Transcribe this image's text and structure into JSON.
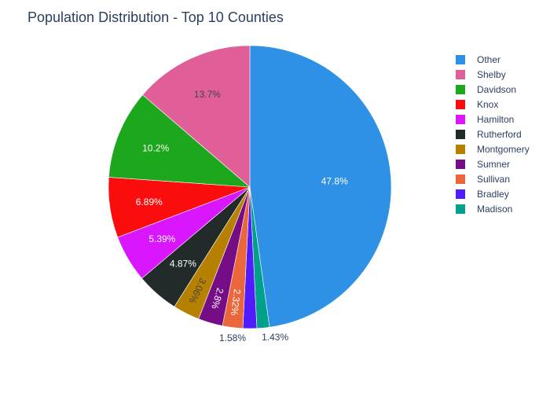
{
  "chart_data": {
    "type": "pie",
    "title": "Population Distribution - Top 10 Counties",
    "labels": [
      "Other",
      "Shelby",
      "Davidson",
      "Knox",
      "Hamilton",
      "Rutherford",
      "Montgomery",
      "Sumner",
      "Sullivan",
      "Bradley",
      "Madison"
    ],
    "pie_order": [
      "Other",
      "Madison",
      "Bradley",
      "Sullivan",
      "Sumner",
      "Montgomery",
      "Rutherford",
      "Hamilton",
      "Knox",
      "Davidson",
      "Shelby"
    ],
    "values": [
      47.8,
      13.7,
      10.2,
      6.89,
      5.39,
      4.87,
      3.06,
      2.8,
      2.32,
      1.58,
      1.43
    ],
    "value_labels": [
      "47.8%",
      "13.7%",
      "10.2%",
      "6.89%",
      "5.39%",
      "4.87%",
      "3.06%",
      "2.8%",
      "2.32%",
      "1.58%",
      "1.43%"
    ],
    "colors": [
      "#2E91E5",
      "#E15F99",
      "#1CA71C",
      "#FB0D0D",
      "#DA16FF",
      "#222A2A",
      "#B68100",
      "#750D86",
      "#EB663B",
      "#511CFB",
      "#00A08B"
    ],
    "legend_position": "right"
  }
}
